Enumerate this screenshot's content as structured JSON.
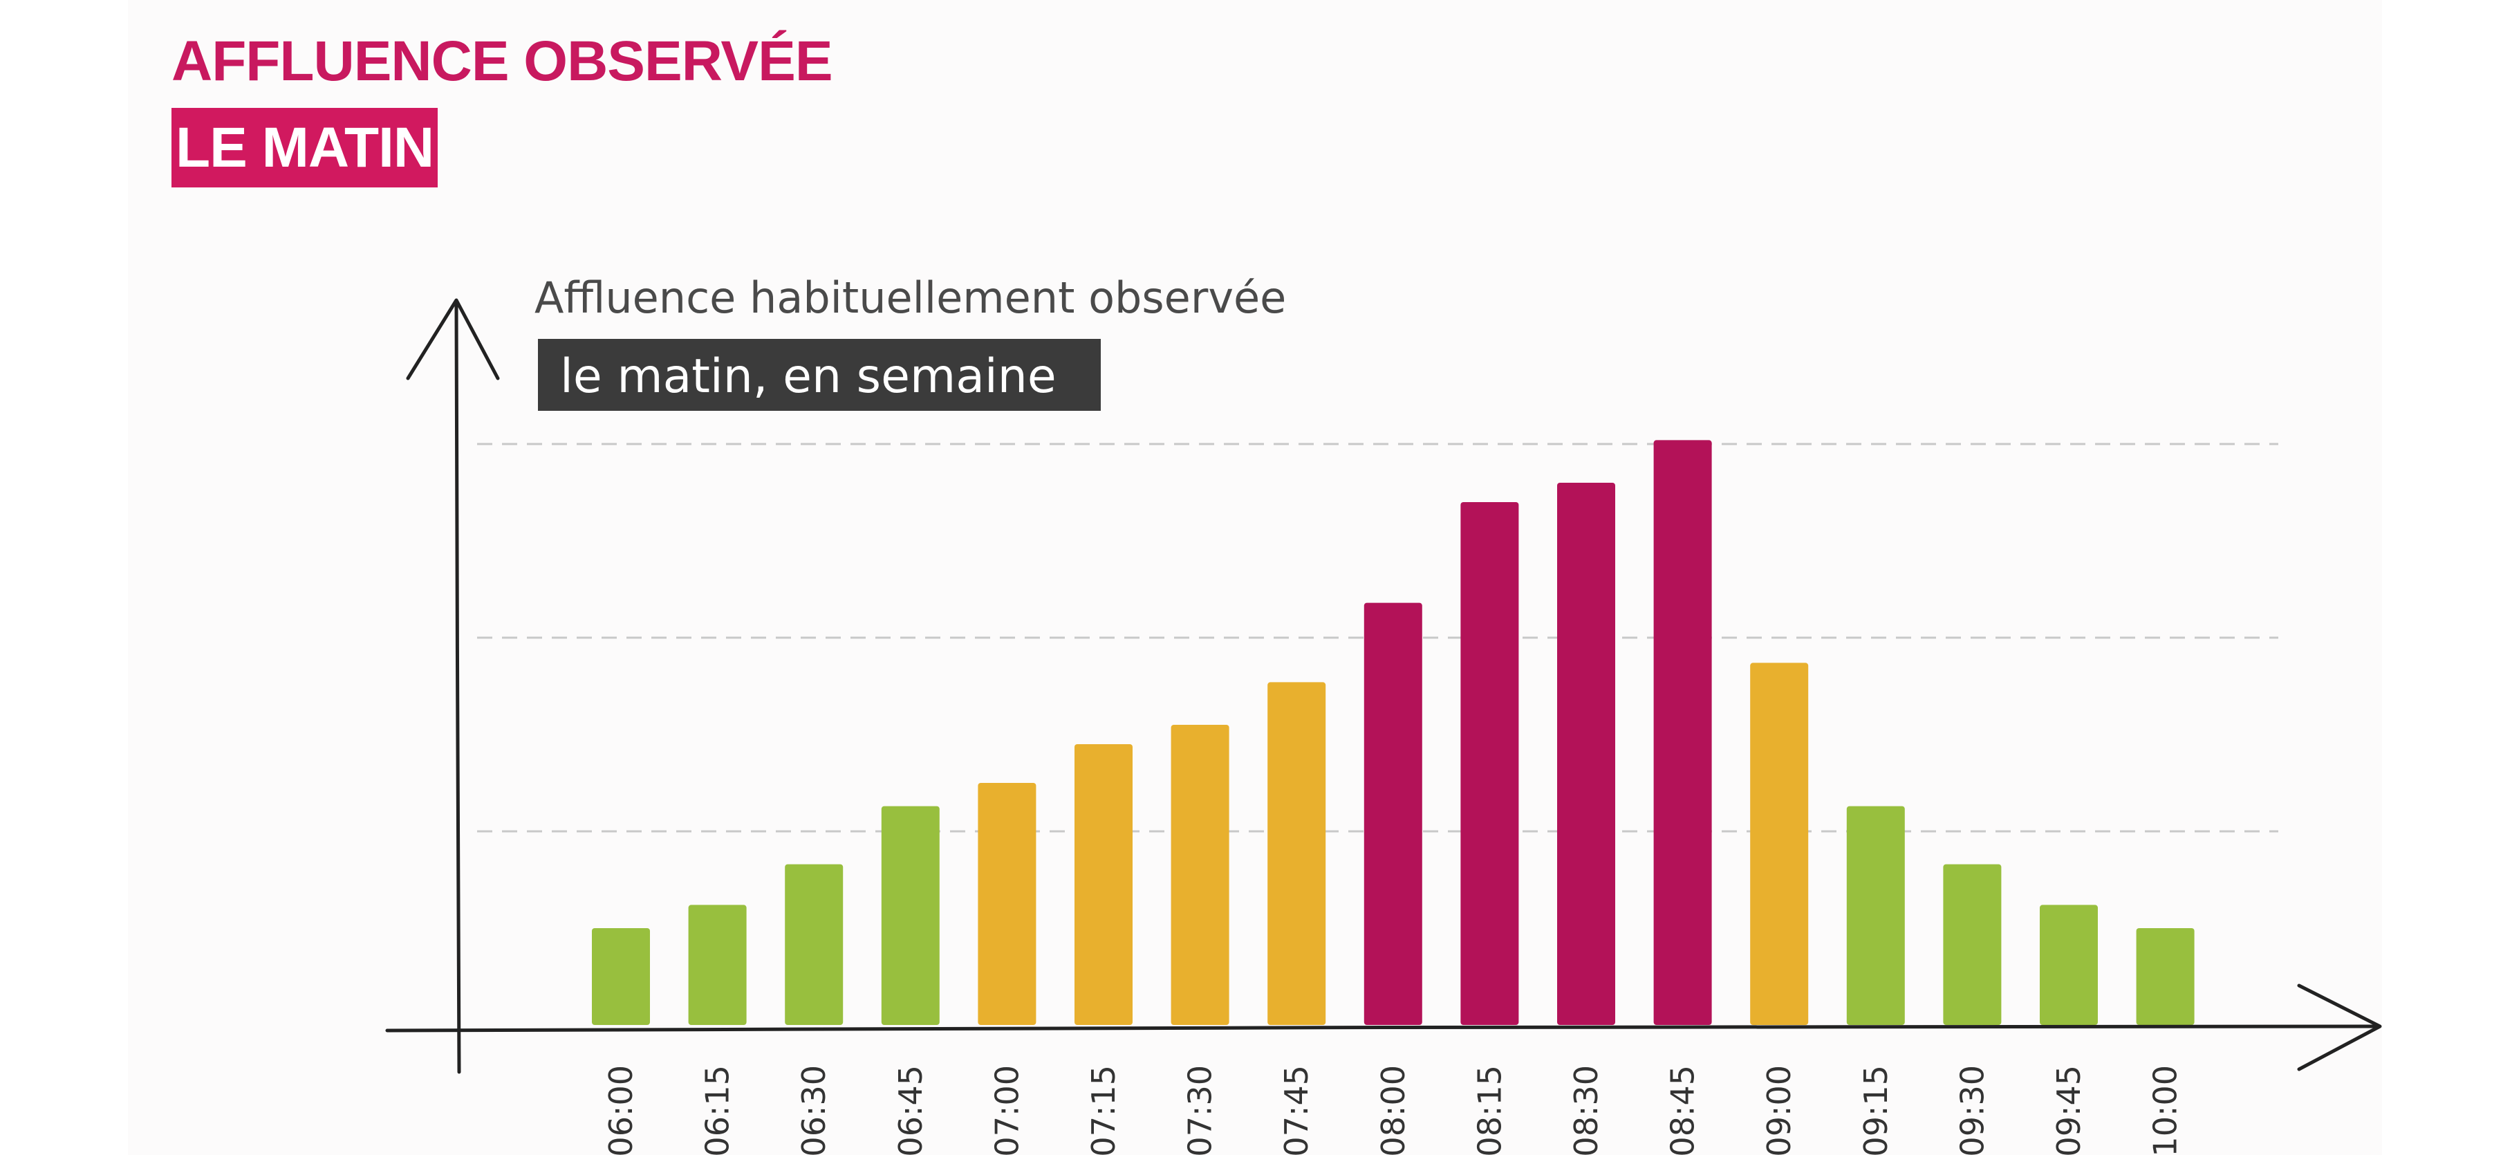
{
  "header": {
    "title": "AFFLUENCE OBSERVÉE",
    "subtitle": "LE MATIN"
  },
  "colors": {
    "low": "#98bf3e",
    "medium": "#e8b02e",
    "high": "#b31258",
    "title": "#c8195f",
    "highlight_box": "#3b3b3b",
    "axis": "#222222",
    "grid": "#c8c8c8"
  },
  "chart_data": {
    "type": "bar",
    "title": "Affluence habituellement observée",
    "subtitle": "le matin, en semaine",
    "xlabel": "",
    "ylabel": "",
    "y_axis_numbered": false,
    "ylim": [
      0,
      3
    ],
    "grid": "horizontal dashed",
    "categories": [
      "06:00",
      "06:15",
      "06:30",
      "06:45",
      "07:00",
      "07:15",
      "07:30",
      "07:45",
      "08:00",
      "08:15",
      "08:30",
      "08:45",
      "09:00",
      "09:15",
      "09:30",
      "09:45",
      "10:00"
    ],
    "values": [
      0.5,
      0.62,
      0.83,
      1.13,
      1.25,
      1.45,
      1.55,
      1.77,
      2.18,
      2.7,
      2.8,
      3.02,
      1.87,
      1.13,
      0.83,
      0.62,
      0.5
    ],
    "levels": [
      "low",
      "low",
      "low",
      "low",
      "medium",
      "medium",
      "medium",
      "medium",
      "high",
      "high",
      "high",
      "high",
      "medium",
      "low",
      "low",
      "low",
      "low"
    ]
  }
}
